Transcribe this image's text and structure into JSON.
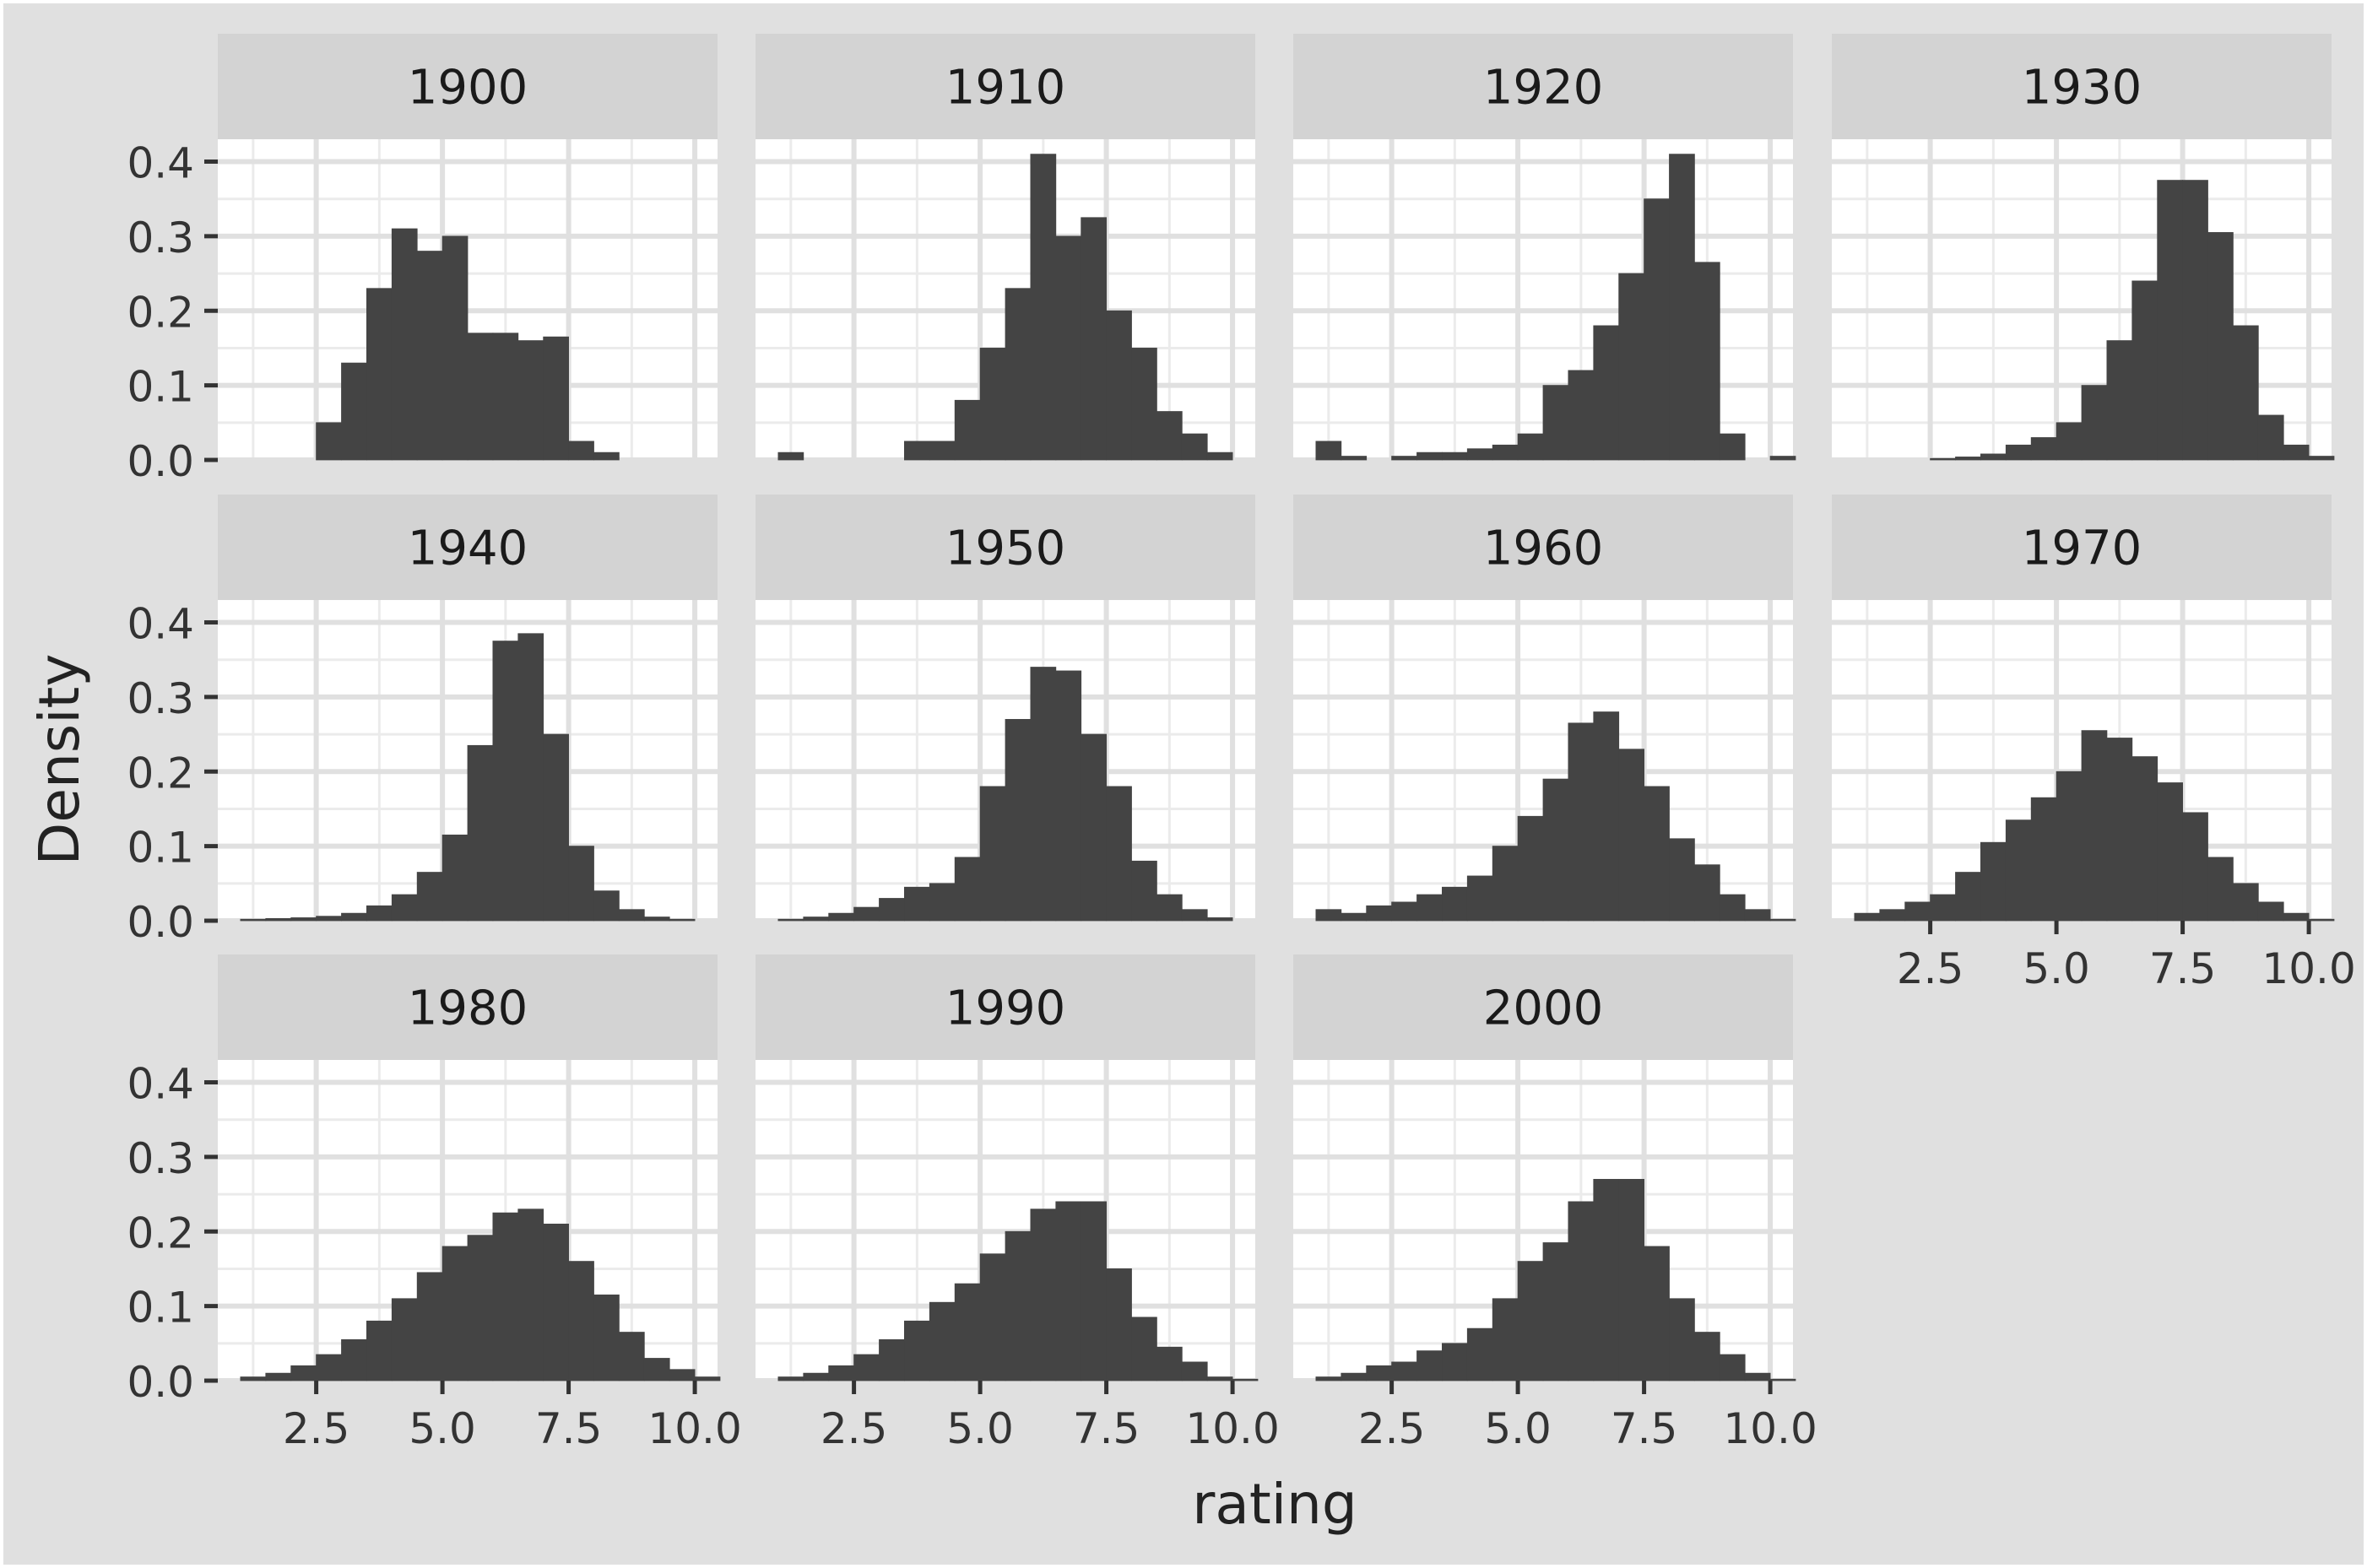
{
  "chart_data": {
    "type": "bar",
    "facet_variable": "decade",
    "xlabel": "rating",
    "ylabel": "Density",
    "x_ticks": [
      "2.5",
      "5.0",
      "7.5",
      "10.0"
    ],
    "y_ticks": [
      "0.0",
      "0.1",
      "0.2",
      "0.3",
      "0.4"
    ],
    "xlim": [
      0.55,
      10.45
    ],
    "ylim": [
      0,
      0.43
    ],
    "bin_width": 0.5,
    "bin_starts": [
      1.0,
      1.5,
      2.0,
      2.5,
      3.0,
      3.5,
      4.0,
      4.5,
      5.0,
      5.5,
      6.0,
      6.5,
      7.0,
      7.5,
      8.0,
      8.5,
      9.0,
      9.5,
      10.0
    ],
    "grid": true,
    "panels": [
      {
        "label": "1900",
        "values": [
          0,
          0,
          0,
          0.05,
          0.13,
          0.23,
          0.31,
          0.28,
          0.3,
          0.17,
          0.17,
          0.16,
          0.165,
          0.025,
          0.01,
          0,
          0,
          0,
          0
        ]
      },
      {
        "label": "1910",
        "values": [
          0.01,
          0,
          0,
          0,
          0,
          0.025,
          0.025,
          0.08,
          0.15,
          0.23,
          0.41,
          0.3,
          0.325,
          0.2,
          0.15,
          0.065,
          0.035,
          0.01,
          0
        ]
      },
      {
        "label": "1920",
        "values": [
          0.025,
          0.005,
          0,
          0.005,
          0.01,
          0.01,
          0.015,
          0.02,
          0.035,
          0.1,
          0.12,
          0.18,
          0.25,
          0.35,
          0.41,
          0.265,
          0.035,
          0,
          0.005
        ]
      },
      {
        "label": "1930",
        "values": [
          0,
          0,
          0,
          0.002,
          0.004,
          0.008,
          0.02,
          0.03,
          0.05,
          0.1,
          0.16,
          0.24,
          0.375,
          0.375,
          0.305,
          0.18,
          0.06,
          0.02,
          0.005
        ]
      },
      {
        "label": "1940",
        "values": [
          0.002,
          0.003,
          0.004,
          0.006,
          0.01,
          0.02,
          0.035,
          0.065,
          0.115,
          0.235,
          0.375,
          0.385,
          0.25,
          0.1,
          0.04,
          0.015,
          0.005,
          0.002,
          0
        ]
      },
      {
        "label": "1950",
        "values": [
          0.002,
          0.005,
          0.01,
          0.018,
          0.03,
          0.045,
          0.05,
          0.085,
          0.18,
          0.27,
          0.34,
          0.335,
          0.25,
          0.18,
          0.08,
          0.035,
          0.015,
          0.004,
          0
        ]
      },
      {
        "label": "1960",
        "values": [
          0.015,
          0.01,
          0.02,
          0.025,
          0.035,
          0.045,
          0.06,
          0.1,
          0.14,
          0.19,
          0.265,
          0.28,
          0.23,
          0.18,
          0.11,
          0.075,
          0.035,
          0.015,
          0.002
        ]
      },
      {
        "label": "1970",
        "values": [
          0.01,
          0.015,
          0.025,
          0.035,
          0.065,
          0.105,
          0.135,
          0.165,
          0.2,
          0.255,
          0.245,
          0.22,
          0.185,
          0.145,
          0.085,
          0.05,
          0.025,
          0.01,
          0.002
        ]
      },
      {
        "label": "1980",
        "values": [
          0.005,
          0.01,
          0.02,
          0.035,
          0.055,
          0.08,
          0.11,
          0.145,
          0.18,
          0.195,
          0.225,
          0.23,
          0.21,
          0.16,
          0.115,
          0.065,
          0.03,
          0.015,
          0.005
        ]
      },
      {
        "label": "1990",
        "values": [
          0.005,
          0.01,
          0.02,
          0.035,
          0.055,
          0.08,
          0.105,
          0.13,
          0.17,
          0.2,
          0.23,
          0.24,
          0.24,
          0.15,
          0.085,
          0.045,
          0.025,
          0.005,
          0.002
        ]
      },
      {
        "label": "2000",
        "values": [
          0.005,
          0.01,
          0.02,
          0.025,
          0.04,
          0.05,
          0.07,
          0.11,
          0.16,
          0.185,
          0.24,
          0.27,
          0.27,
          0.18,
          0.11,
          0.065,
          0.035,
          0.01,
          0.002
        ]
      }
    ]
  }
}
